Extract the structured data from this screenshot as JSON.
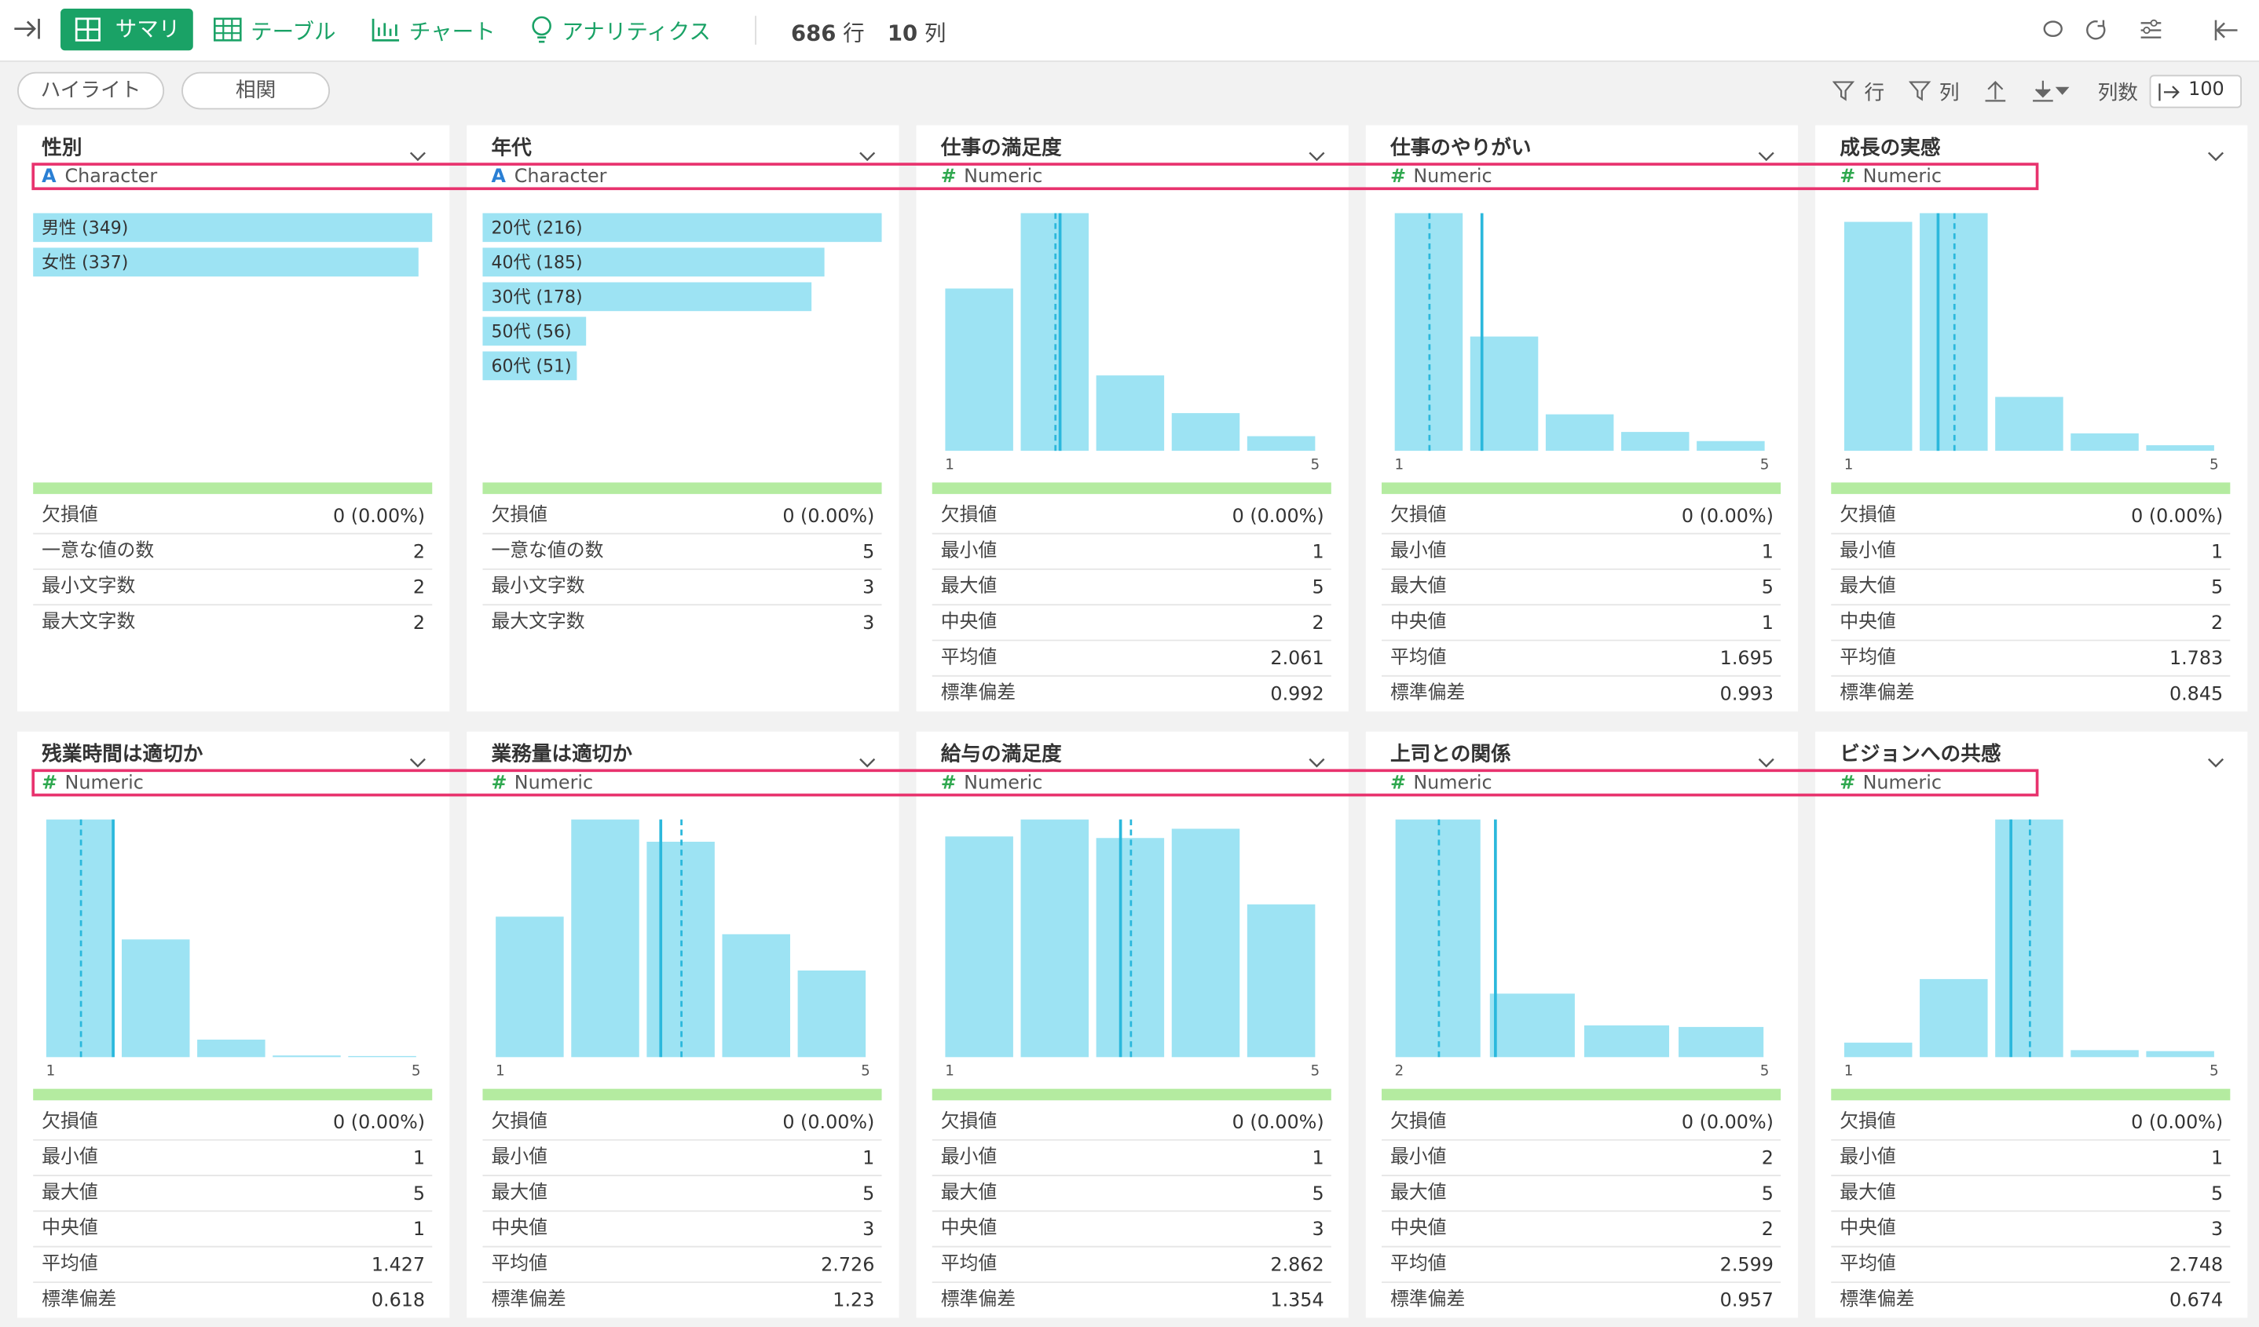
{
  "toolbar": {
    "tabs": [
      "サマリ",
      "テーブル",
      "チャート",
      "アナリティクス"
    ],
    "rows": {
      "count": 686,
      "unit": "行"
    },
    "cols": {
      "count": 10,
      "unit": "列"
    },
    "buttons": [
      "ハイライト",
      "相関"
    ],
    "filters": [
      "行",
      "列"
    ],
    "column_count_label": "列数",
    "column_count": 100
  },
  "cards": [
    {
      "name": "性別",
      "type": "Character",
      "bars": [
        {
          "label": "男性 (349)",
          "value": 349
        },
        {
          "label": "女性 (337)",
          "value": 337
        }
      ],
      "stats": [
        {
          "label": "欠損値",
          "value": "0 (0.00%)"
        },
        {
          "label": "一意な値の数",
          "value": 2
        },
        {
          "label": "最小文字数",
          "value": 2
        },
        {
          "label": "最大文字数",
          "value": 2
        }
      ]
    },
    {
      "name": "年代",
      "type": "Character",
      "bars": [
        {
          "label": "20代 (216)",
          "value": 216
        },
        {
          "label": "40代 (185)",
          "value": 185
        },
        {
          "label": "30代 (178)",
          "value": 178
        },
        {
          "label": "50代 (56)",
          "value": 56
        },
        {
          "label": "60代 (51)",
          "value": 51
        }
      ],
      "stats": [
        {
          "label": "欠損値",
          "value": "0 (0.00%)"
        },
        {
          "label": "一意な値の数",
          "value": 5
        },
        {
          "label": "最小文字数",
          "value": 3
        },
        {
          "label": "最大文字数",
          "value": 3
        }
      ]
    },
    {
      "name": "仕事の満足度",
      "type": "Numeric",
      "counts": [
        211,
        309,
        98,
        49,
        19
      ],
      "stats": [
        {
          "label": "欠損値",
          "value": "0 (0.00%)"
        },
        {
          "label": "最小値",
          "value": 1
        },
        {
          "label": "最大値",
          "value": 5
        },
        {
          "label": "中央値",
          "value": 2
        },
        {
          "label": "平均値",
          "value": 2.061
        },
        {
          "label": "標準偏差",
          "value": 0.992
        }
      ]
    },
    {
      "name": "仕事のやりがい",
      "type": "Numeric",
      "counts": [
        391,
        188,
        60,
        31,
        16
      ],
      "stats": [
        {
          "label": "欠損値",
          "value": "0 (0.00%)"
        },
        {
          "label": "最小値",
          "value": 1
        },
        {
          "label": "最大値",
          "value": 5
        },
        {
          "label": "中央値",
          "value": 1
        },
        {
          "label": "平均値",
          "value": 1.695
        },
        {
          "label": "標準偏差",
          "value": 0.993
        }
      ]
    },
    {
      "name": "成長の実感",
      "type": "Numeric",
      "counts": [
        289,
        300,
        68,
        22,
        7
      ],
      "stats": [
        {
          "label": "欠損値",
          "value": "0 (0.00%)"
        },
        {
          "label": "最小値",
          "value": 1
        },
        {
          "label": "最大値",
          "value": 5
        },
        {
          "label": "中央値",
          "value": 2
        },
        {
          "label": "平均値",
          "value": 1.783
        },
        {
          "label": "標準偏差",
          "value": 0.845
        }
      ]
    },
    {
      "name": "残業時間は適切か",
      "type": "Numeric",
      "counts": [
        434,
        215,
        32,
        3,
        2
      ],
      "stats": [
        {
          "label": "欠損値",
          "value": "0 (0.00%)"
        },
        {
          "label": "最小値",
          "value": 1
        },
        {
          "label": "最大値",
          "value": 5
        },
        {
          "label": "中央値",
          "value": 1
        },
        {
          "label": "平均値",
          "value": 1.427
        },
        {
          "label": "標準偏差",
          "value": 0.618
        }
      ]
    },
    {
      "name": "業務量は適切か",
      "type": "Numeric",
      "counts": [
        120,
        203,
        184,
        105,
        74
      ],
      "stats": [
        {
          "label": "欠損値",
          "value": "0 (0.00%)"
        },
        {
          "label": "最小値",
          "value": 1
        },
        {
          "label": "最大値",
          "value": 5
        },
        {
          "label": "中央値",
          "value": 3
        },
        {
          "label": "平均値",
          "value": 2.726
        },
        {
          "label": "標準偏差",
          "value": 1.23
        }
      ]
    },
    {
      "name": "給与の満足度",
      "type": "Numeric",
      "counts": [
        143,
        154,
        142,
        148,
        99
      ],
      "stats": [
        {
          "label": "欠損値",
          "value": "0 (0.00%)"
        },
        {
          "label": "最小値",
          "value": 1
        },
        {
          "label": "最大値",
          "value": 5
        },
        {
          "label": "中央値",
          "value": 3
        },
        {
          "label": "平均値",
          "value": 2.862
        },
        {
          "label": "標準偏差",
          "value": 1.354
        }
      ]
    },
    {
      "name": "上司との関係",
      "type": "Numeric",
      "counts": [
        449,
        120,
        60,
        57
      ],
      "stats": [
        {
          "label": "欠損値",
          "value": "0 (0.00%)"
        },
        {
          "label": "最小値",
          "value": 2
        },
        {
          "label": "最大値",
          "value": 5
        },
        {
          "label": "中央値",
          "value": 2
        },
        {
          "label": "平均値",
          "value": 2.599
        },
        {
          "label": "標準偏差",
          "value": 0.957
        }
      ]
    },
    {
      "name": "ビジョンへの共感",
      "type": "Numeric",
      "counts": [
        29,
        156,
        475,
        14,
        12
      ],
      "stats": [
        {
          "label": "欠損値",
          "value": "0 (0.00%)"
        },
        {
          "label": "最小値",
          "value": 1
        },
        {
          "label": "最大値",
          "value": 5
        },
        {
          "label": "中央値",
          "value": 3
        },
        {
          "label": "平均値",
          "value": 2.748
        },
        {
          "label": "標準偏差",
          "value": 0.674
        }
      ]
    }
  ]
}
